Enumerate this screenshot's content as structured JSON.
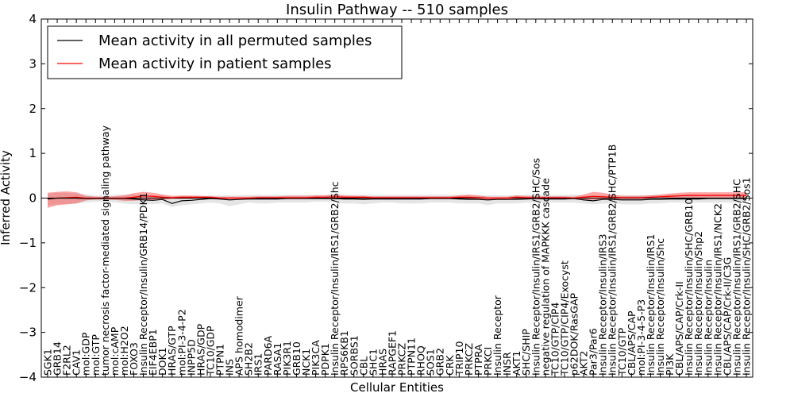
{
  "chart_data": {
    "type": "line",
    "title": "Insulin Pathway -- 510 samples",
    "xlabel": "Cellular Entities",
    "ylabel": "Inferred Activity",
    "ylim": [
      -4,
      4
    ],
    "yticks": [
      -4,
      -3,
      -2,
      -1,
      0,
      1,
      2,
      3,
      4
    ],
    "ytick_labels": [
      "−4",
      "−3",
      "−2",
      "−1",
      "0",
      "1",
      "2",
      "3",
      "4"
    ],
    "legend": {
      "placement": "top-left",
      "entries": [
        {
          "label": "Mean activity in all permuted samples",
          "color": "#000000"
        },
        {
          "label": "Mean activity in patient samples",
          "color": "#ff0000"
        }
      ]
    },
    "categories": [
      "SGK1",
      "GRB14",
      "F2RL2",
      "CAV1",
      "mol:GDP",
      "mol:GTP",
      "tumor necrosis factor-mediated signaling pathway",
      "mol:cAMP",
      "mol:H2O2",
      "FOXO3",
      "Insulin Receptor/Insulin/GRB14/PDK1",
      "EIF4EBP1",
      "DOK1",
      "HRAS/GTP",
      "mol:PI-3-4-P2",
      "INPP5D",
      "HRAS/GDP",
      "TC10/GDP",
      "PTPN1",
      "INS",
      "APS homodimer",
      "SH2B2",
      "IRS1",
      "PARD6A",
      "RASA1",
      "PIK3R1",
      "GRB10",
      "NCK1",
      "PIK3CA",
      "PDPK1",
      "Insulin Receptor/Insulin/IRS1/GRB2/Shc",
      "RPS6KB1",
      "SORBS1",
      "CBL",
      "SHC1",
      "HRAS",
      "RAPGEF1",
      "PRKCZ",
      "PTPN11",
      "RHOQ",
      "SOS1",
      "GRB2",
      "CRK",
      "TRIP10",
      "PRKCZ",
      "PTPRA",
      "PRKCI",
      "Insulin Receptor",
      "INSR",
      "AKT1",
      "SHC/SHIP",
      "Insulin Receptor/Insulin/IRS1/GRB2/SHC/Sos",
      "negative regulation of MAPKKK cascade",
      "TC10/GTP/CIP4",
      "TC10/GTP/CIP4/Exocyst",
      "p62DOK/RasGAP",
      "AKT2",
      "Par3/Par6",
      "Insulin Receptor/Insulin/IRS3",
      "Insulin Receptor/Insulin/IRS1/GRB2/SHC/PTP1B",
      "TC10/GTP",
      "CBL/APS/CAP",
      "mol:PI-3-4-5-P3",
      "Insulin Receptor/Insulin/IRS1",
      "Insulin Receptor/Insulin/Shc",
      "PI3K",
      "CBL/APS/CAP/Crk-II",
      "Insulin Receptor/Insulin/SHC/GRB10",
      "Insulin Receptor/Insulin/Shp2",
      "Insulin Receptor/Insulin",
      "Insulin Receptor/Insulin/IRS1/NCK2",
      "CBL/APS/CAP/Crk-II/C3G",
      "Insulin Receptor/Insulin/IRS1/GRB2/SHC",
      "Insulin Receptor/Insulin/SHC/GRB2/Sos1"
    ],
    "series": [
      {
        "name": "Mean activity in all permuted samples",
        "color": "#000000",
        "values": [
          -0.02,
          0.0,
          0.0,
          0.0,
          -0.01,
          -0.01,
          -0.01,
          -0.01,
          -0.01,
          -0.02,
          -0.04,
          -0.05,
          -0.03,
          -0.12,
          -0.06,
          -0.05,
          -0.03,
          -0.01,
          -0.02,
          -0.04,
          -0.03,
          -0.02,
          -0.02,
          -0.02,
          -0.02,
          -0.01,
          -0.01,
          -0.01,
          -0.01,
          -0.01,
          -0.01,
          -0.02,
          -0.02,
          -0.03,
          -0.02,
          -0.02,
          -0.02,
          -0.02,
          -0.02,
          -0.02,
          -0.01,
          -0.01,
          -0.01,
          -0.02,
          -0.03,
          -0.03,
          -0.04,
          -0.03,
          -0.03,
          -0.03,
          -0.02,
          -0.01,
          -0.02,
          -0.02,
          -0.02,
          -0.01,
          -0.04,
          -0.06,
          -0.03,
          -0.03,
          -0.04,
          -0.04,
          -0.04,
          -0.03,
          -0.03,
          -0.02,
          -0.02,
          -0.02,
          -0.02,
          -0.01,
          -0.01,
          -0.01,
          -0.01,
          -0.01
        ],
        "band_lower": [
          -0.16,
          -0.14,
          -0.13,
          -0.12,
          -0.1,
          -0.08,
          -0.08,
          -0.1,
          -0.12,
          -0.14,
          -0.12,
          -0.14,
          -0.12,
          -0.2,
          -0.16,
          -0.14,
          -0.12,
          -0.1,
          -0.12,
          -0.18,
          -0.14,
          -0.1,
          -0.12,
          -0.12,
          -0.1,
          -0.1,
          -0.1,
          -0.1,
          -0.08,
          -0.08,
          -0.1,
          -0.12,
          -0.12,
          -0.14,
          -0.12,
          -0.1,
          -0.1,
          -0.12,
          -0.12,
          -0.12,
          -0.1,
          -0.1,
          -0.1,
          -0.12,
          -0.12,
          -0.12,
          -0.16,
          -0.12,
          -0.12,
          -0.12,
          -0.1,
          -0.1,
          -0.1,
          -0.1,
          -0.1,
          -0.1,
          -0.12,
          -0.14,
          -0.12,
          -0.12,
          -0.14,
          -0.14,
          -0.14,
          -0.12,
          -0.12,
          -0.1,
          -0.1,
          -0.1,
          -0.1,
          -0.1,
          -0.1,
          -0.1,
          -0.1,
          -0.1
        ],
        "band_upper": [
          0.1,
          0.12,
          0.12,
          0.1,
          0.08,
          0.06,
          0.06,
          0.07,
          0.08,
          0.08,
          0.06,
          0.06,
          0.06,
          0.03,
          0.04,
          0.04,
          0.05,
          0.06,
          0.06,
          0.06,
          0.06,
          0.07,
          0.07,
          0.07,
          0.07,
          0.07,
          0.07,
          0.07,
          0.07,
          0.07,
          0.08,
          0.07,
          0.07,
          0.07,
          0.07,
          0.07,
          0.07,
          0.07,
          0.07,
          0.07,
          0.07,
          0.07,
          0.07,
          0.07,
          0.06,
          0.06,
          0.06,
          0.06,
          0.06,
          0.06,
          0.07,
          0.08,
          0.07,
          0.07,
          0.07,
          0.08,
          0.06,
          0.05,
          0.06,
          0.06,
          0.06,
          0.06,
          0.06,
          0.07,
          0.07,
          0.08,
          0.08,
          0.08,
          0.08,
          0.08,
          0.08,
          0.08,
          0.08,
          0.08
        ]
      },
      {
        "name": "Mean activity in patient samples",
        "color": "#ff0000",
        "values": [
          -0.02,
          0.0,
          0.01,
          0.02,
          0.0,
          0.0,
          0.0,
          0.0,
          0.0,
          0.02,
          0.05,
          0.04,
          0.02,
          0.01,
          0.02,
          0.02,
          0.02,
          0.02,
          0.0,
          0.0,
          0.0,
          0.0,
          0.01,
          0.01,
          0.01,
          0.01,
          0.01,
          0.01,
          0.02,
          0.02,
          0.03,
          0.02,
          0.02,
          0.02,
          0.01,
          0.01,
          0.01,
          0.01,
          0.01,
          0.01,
          0.01,
          0.01,
          0.01,
          0.02,
          0.02,
          0.01,
          0.0,
          0.0,
          0.0,
          0.02,
          0.01,
          0.01,
          0.01,
          0.01,
          0.01,
          0.0,
          0.02,
          0.04,
          0.03,
          0.02,
          0.01,
          0.01,
          0.01,
          0.02,
          0.03,
          0.04,
          0.05,
          0.06,
          0.06,
          0.06,
          0.06,
          0.06,
          0.06,
          0.06
        ],
        "band_lower": [
          -0.22,
          -0.16,
          -0.14,
          -0.12,
          -0.05,
          -0.03,
          -0.03,
          -0.04,
          -0.06,
          -0.06,
          -0.04,
          -0.05,
          -0.04,
          -0.02,
          -0.02,
          -0.02,
          -0.02,
          -0.02,
          -0.02,
          -0.02,
          -0.02,
          -0.02,
          -0.02,
          -0.02,
          -0.02,
          -0.02,
          -0.02,
          -0.02,
          -0.02,
          -0.02,
          -0.03,
          -0.02,
          -0.02,
          -0.02,
          -0.02,
          -0.02,
          -0.02,
          -0.02,
          -0.02,
          -0.02,
          -0.02,
          -0.02,
          -0.02,
          -0.02,
          -0.03,
          -0.03,
          -0.03,
          -0.02,
          -0.02,
          -0.02,
          -0.02,
          -0.02,
          -0.02,
          -0.02,
          -0.02,
          -0.02,
          -0.03,
          -0.04,
          -0.03,
          -0.02,
          -0.02,
          -0.02,
          -0.02,
          -0.01,
          -0.01,
          0.0,
          0.0,
          0.0,
          0.0,
          0.0,
          0.0,
          0.0,
          0.0,
          0.0
        ],
        "band_upper": [
          0.12,
          0.14,
          0.15,
          0.13,
          0.05,
          0.03,
          0.03,
          0.04,
          0.06,
          0.11,
          0.14,
          0.12,
          0.08,
          0.05,
          0.06,
          0.06,
          0.05,
          0.04,
          0.03,
          0.03,
          0.03,
          0.03,
          0.04,
          0.04,
          0.04,
          0.05,
          0.05,
          0.05,
          0.06,
          0.06,
          0.08,
          0.06,
          0.05,
          0.05,
          0.04,
          0.04,
          0.04,
          0.04,
          0.04,
          0.04,
          0.04,
          0.04,
          0.04,
          0.06,
          0.08,
          0.06,
          0.03,
          0.03,
          0.03,
          0.06,
          0.05,
          0.04,
          0.04,
          0.04,
          0.04,
          0.03,
          0.08,
          0.14,
          0.12,
          0.08,
          0.05,
          0.05,
          0.05,
          0.06,
          0.08,
          0.1,
          0.12,
          0.13,
          0.13,
          0.13,
          0.13,
          0.13,
          0.13,
          0.13
        ]
      }
    ]
  }
}
